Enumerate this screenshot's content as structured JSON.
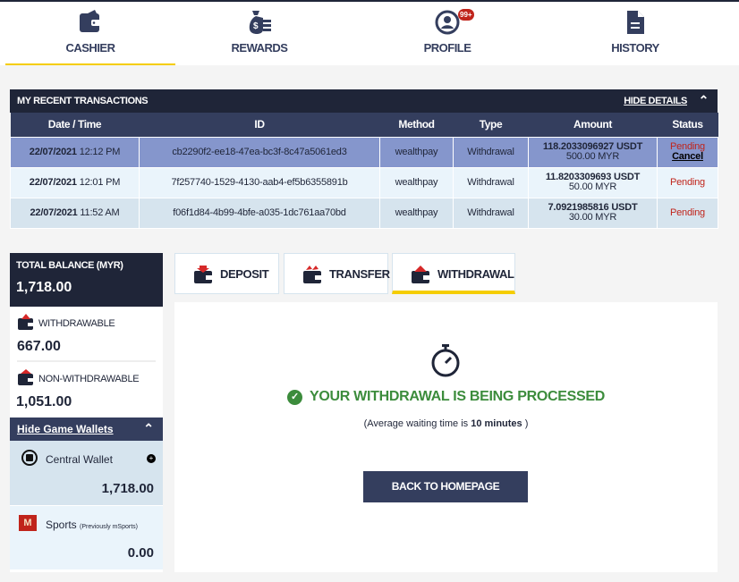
{
  "nav": [
    {
      "label": "CASHIER",
      "icon": "wallet-icon",
      "active": true
    },
    {
      "label": "REWARDS",
      "icon": "money-bag-icon"
    },
    {
      "label": "PROFILE",
      "icon": "profile-icon",
      "badge": "99+"
    },
    {
      "label": "HISTORY",
      "icon": "document-icon"
    }
  ],
  "transactions": {
    "title": "MY RECENT TRANSACTIONS",
    "hide_label": "HIDE DETAILS",
    "columns": [
      "Date / Time",
      "ID",
      "Method",
      "Type",
      "Amount",
      "Status"
    ],
    "rows": [
      {
        "date": "22/07/2021",
        "time": "12:12 PM",
        "id": "cb2290f2-ee18-47ea-bc3f-8c47a5061ed3",
        "method": "wealthpay",
        "type": "Withdrawal",
        "usdt": "118.2033096927 USDT",
        "myr": "500.00 MYR",
        "status": "Pending",
        "action": "Cancel"
      },
      {
        "date": "22/07/2021",
        "time": "12:01 PM",
        "id": "7f257740-1529-4130-aab4-ef5b6355891b",
        "method": "wealthpay",
        "type": "Withdrawal",
        "usdt": "11.8203309693 USDT",
        "myr": "50.00 MYR",
        "status": "Pending"
      },
      {
        "date": "22/07/2021",
        "time": "11:52 AM",
        "id": "f06f1d84-4b99-4bfe-a035-1dc761aa70bd",
        "method": "wealthpay",
        "type": "Withdrawal",
        "usdt": "7.0921985816 USDT",
        "myr": "30.00 MYR",
        "status": "Pending"
      }
    ]
  },
  "balance": {
    "total_label": "TOTAL BALANCE (MYR)",
    "total": "1,718.00",
    "withdrawable_label": "WITHDRAWABLE",
    "withdrawable": "667.00",
    "non_label": "NON-WITHDRAWABLE",
    "non": "1,051.00",
    "hide_wallets": "Hide Game Wallets",
    "wallets": [
      {
        "name": "Central Wallet",
        "value": "1,718.00"
      },
      {
        "name": "Sports",
        "note": "(Previously mSports)",
        "value": "0.00"
      }
    ]
  },
  "tabs": [
    "DEPOSIT",
    "TRANSFER",
    "WITHDRAWAL"
  ],
  "content": {
    "message": "YOUR WITHDRAWAL IS BEING PROCESSED",
    "note_pre": "(Average waiting time is ",
    "note_bold": "10 minutes",
    "note_post": " )",
    "button": "BACK TO HOMEPAGE"
  },
  "colors": {
    "accent": "#f5cd00",
    "dark": "#1f2538",
    "navy": "#343e5e",
    "success": "#3c8c3c",
    "pending": "#c0241b"
  }
}
